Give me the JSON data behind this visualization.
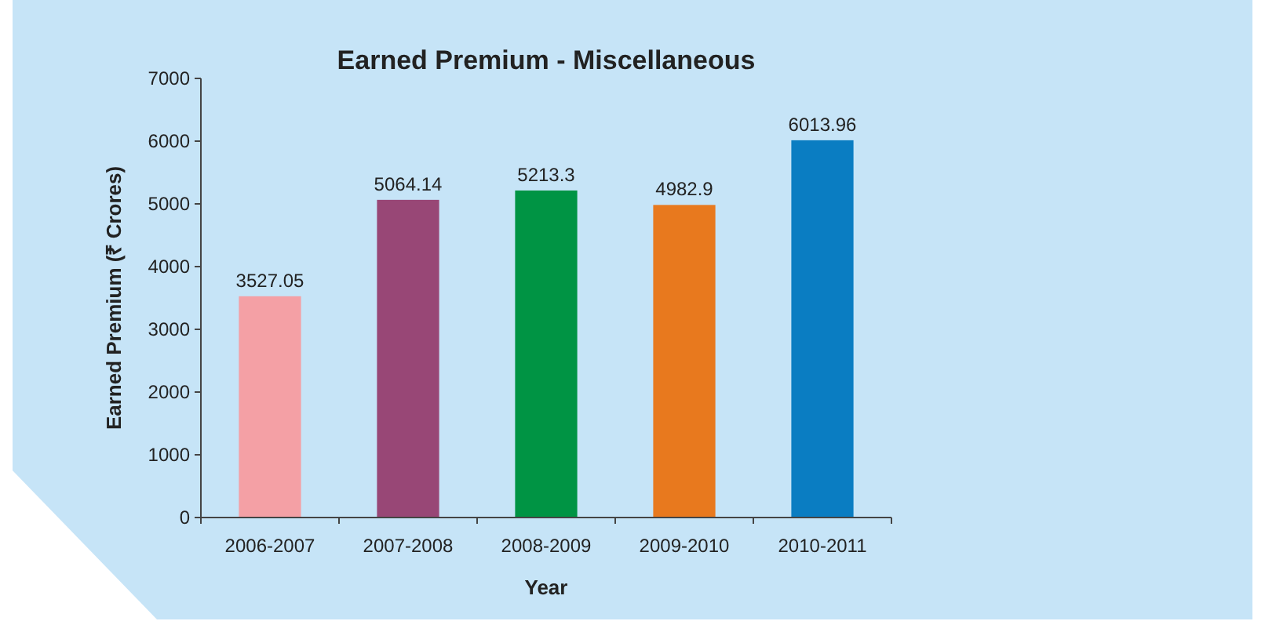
{
  "chart_data": {
    "type": "bar",
    "title": "Earned Premium - Miscellaneous",
    "xlabel": "Year",
    "ylabel": "Earned Premium (₹ Crores)",
    "categories": [
      "2006-2007",
      "2007-2008",
      "2008-2009",
      "2009-2010",
      "2010-2011"
    ],
    "values": [
      3527.05,
      5064.14,
      5213.3,
      4982.9,
      6013.96
    ],
    "colors": [
      "#f4a0a5",
      "#984776",
      "#009444",
      "#e8791e",
      "#0a7dc2"
    ],
    "ylim": [
      0,
      7000
    ],
    "yticks": [
      0,
      1000,
      2000,
      3000,
      4000,
      5000,
      6000,
      7000
    ],
    "data_labels": true
  }
}
